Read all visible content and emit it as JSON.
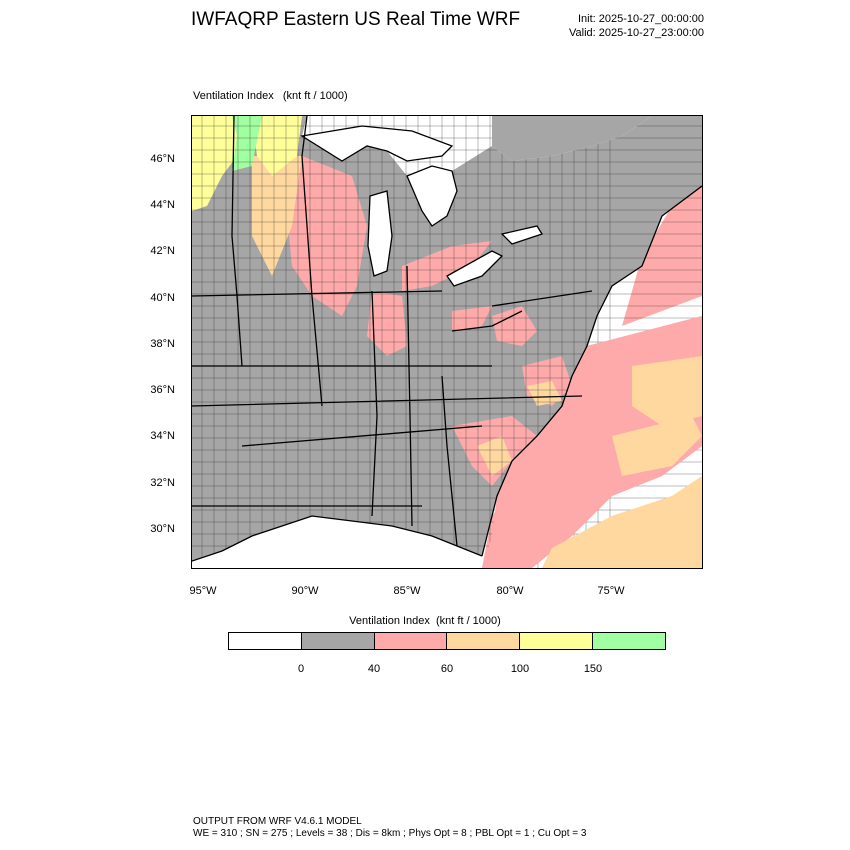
{
  "header": {
    "title": "IWFAQRP Eastern US Real Time WRF",
    "init": "Init: 2025-10-27_00:00:00",
    "valid": "Valid: 2025-10-27_23:00:00"
  },
  "panel": {
    "title": "Ventilation Index   (knt ft / 1000)"
  },
  "map": {
    "lat_labels": [
      "46°N",
      "44°N",
      "42°N",
      "40°N",
      "38°N",
      "36°N",
      "34°N",
      "32°N",
      "30°N"
    ],
    "lon_labels": [
      "95°W",
      "90°W",
      "85°W",
      "80°W",
      "75°W"
    ],
    "land_color": "#a6a6a6",
    "classes_colors": [
      "#ffffff",
      "#a6a6a6",
      "#ffaaaa",
      "#ffd8a0",
      "#ffff99",
      "#a0ffa0"
    ]
  },
  "colorbar": {
    "title": "Ventilation Index  (knt ft / 1000)",
    "colors": [
      "#ffffff",
      "#a6a6a6",
      "#ffaaaa",
      "#ffd8a0",
      "#ffff99",
      "#a0ffa0"
    ],
    "labels": [
      "0",
      "40",
      "60",
      "100",
      "150"
    ]
  },
  "footer": {
    "line1": "OUTPUT FROM WRF V4.6.1 MODEL",
    "line2": "WE = 310 ; SN = 275 ; Levels = 38 ; Dis = 8km ; Phys Opt = 8 ; PBL Opt = 1 ; Cu Opt = 3"
  }
}
